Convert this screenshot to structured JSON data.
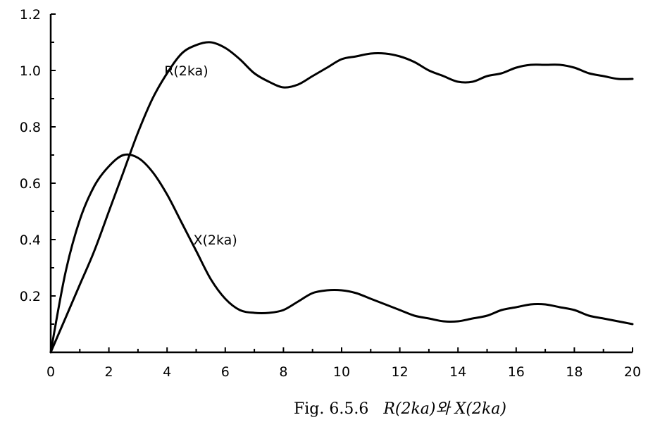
{
  "chart_data": {
    "type": "line",
    "title": "",
    "xlabel": "",
    "ylabel": "",
    "xlim": [
      0,
      20
    ],
    "ylim": [
      0,
      1.2
    ],
    "grid": false,
    "x_ticks": [
      "0",
      "2",
      "4",
      "6",
      "8",
      "10",
      "12",
      "14",
      "16",
      "18",
      "20"
    ],
    "y_ticks": [
      "0.2",
      "0.4",
      "0.6",
      "0.8",
      "1.0",
      "1.2"
    ],
    "series": [
      {
        "name": "R(2ka)",
        "x": [
          0,
          0.5,
          1,
          1.5,
          2,
          2.5,
          3,
          3.5,
          4,
          4.5,
          5,
          5.5,
          6,
          6.5,
          7,
          7.5,
          8,
          8.5,
          9,
          9.5,
          10,
          10.5,
          11,
          11.5,
          12,
          12.5,
          13,
          13.5,
          14,
          14.5,
          15,
          15.5,
          16,
          16.5,
          17,
          17.5,
          18,
          18.5,
          19,
          19.5,
          20
        ],
        "y": [
          0.0,
          0.12,
          0.24,
          0.36,
          0.5,
          0.64,
          0.78,
          0.9,
          0.99,
          1.06,
          1.09,
          1.1,
          1.08,
          1.04,
          0.99,
          0.96,
          0.94,
          0.95,
          0.98,
          1.01,
          1.04,
          1.05,
          1.06,
          1.06,
          1.05,
          1.03,
          1.0,
          0.98,
          0.96,
          0.96,
          0.98,
          0.99,
          1.01,
          1.02,
          1.02,
          1.02,
          1.01,
          0.99,
          0.98,
          0.97,
          0.97
        ]
      },
      {
        "name": "X(2ka)",
        "x": [
          0,
          0.5,
          1,
          1.5,
          2,
          2.5,
          3,
          3.5,
          4,
          4.5,
          5,
          5.5,
          6,
          6.5,
          7,
          7.5,
          8,
          8.5,
          9,
          9.5,
          10,
          10.5,
          11,
          11.5,
          12,
          12.5,
          13,
          13.5,
          14,
          14.5,
          15,
          15.5,
          16,
          16.5,
          17,
          17.5,
          18,
          18.5,
          19,
          19.5,
          20
        ],
        "y": [
          0.0,
          0.28,
          0.47,
          0.59,
          0.66,
          0.7,
          0.69,
          0.64,
          0.56,
          0.46,
          0.36,
          0.26,
          0.19,
          0.15,
          0.14,
          0.14,
          0.15,
          0.18,
          0.21,
          0.22,
          0.22,
          0.21,
          0.19,
          0.17,
          0.15,
          0.13,
          0.12,
          0.11,
          0.11,
          0.12,
          0.13,
          0.15,
          0.16,
          0.17,
          0.17,
          0.16,
          0.15,
          0.13,
          0.12,
          0.11,
          0.1
        ]
      }
    ],
    "caption": {
      "prefix": "Fig. 6.5.6",
      "formula": "R(2ka)와 X(2ka)"
    }
  }
}
